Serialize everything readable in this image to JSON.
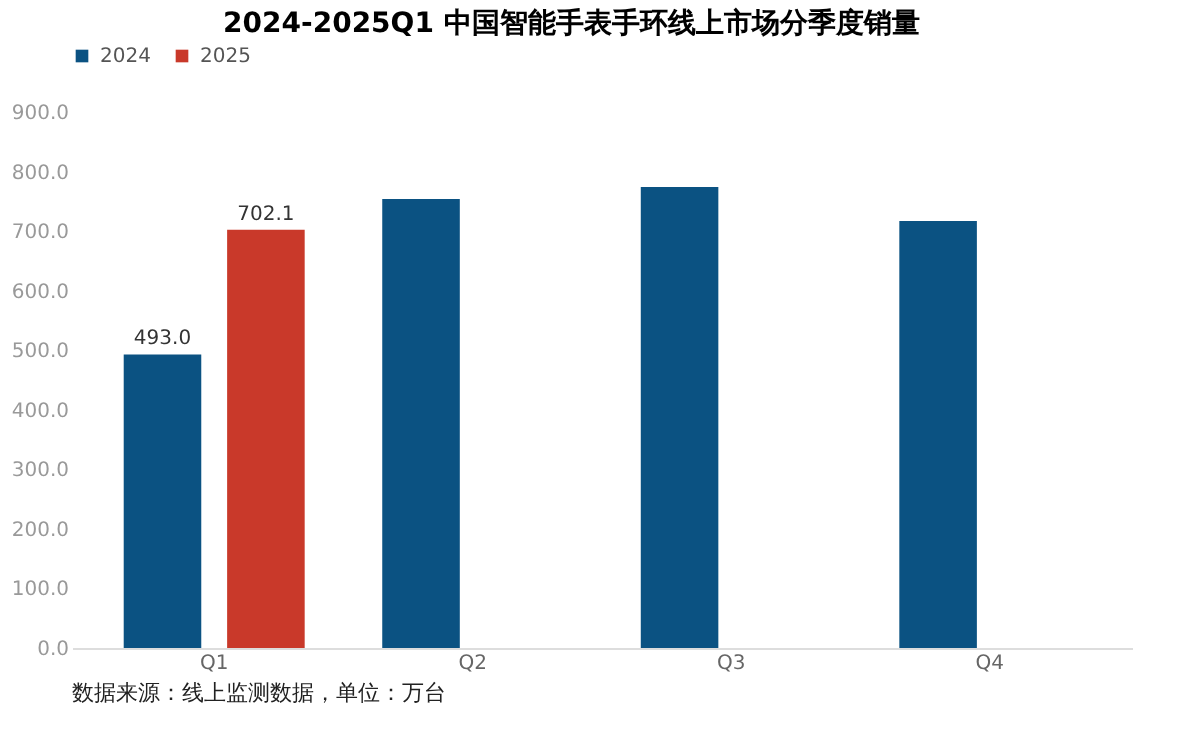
{
  "chart_data": {
    "type": "bar",
    "title": "2024-2025Q1 中国智能手表手环线上市场分季度销量",
    "categories": [
      "Q1",
      "Q2",
      "Q3",
      "Q4"
    ],
    "series": [
      {
        "name": "2024",
        "color": "#0b5282",
        "values": [
          493.0,
          754,
          774,
          717
        ],
        "value_labels": [
          "493.0",
          null,
          null,
          null
        ]
      },
      {
        "name": "2025",
        "color": "#c9392a",
        "values": [
          702.1,
          null,
          null,
          null
        ],
        "value_labels": [
          "702.1",
          null,
          null,
          null
        ]
      }
    ],
    "ylim": [
      0,
      900
    ],
    "yticks": [
      {
        "value": 0,
        "label": "0.0"
      },
      {
        "value": 100,
        "label": "100.0"
      },
      {
        "value": 200,
        "label": "200.0"
      },
      {
        "value": 300,
        "label": "300.0"
      },
      {
        "value": 400,
        "label": "400.0"
      },
      {
        "value": 500,
        "label": "500.0"
      },
      {
        "value": 600,
        "label": "600.0"
      },
      {
        "value": 700,
        "label": "700.0"
      },
      {
        "value": 800,
        "label": "800.0"
      },
      {
        "value": 900,
        "label": "900.0"
      }
    ],
    "grid": false,
    "legend": "top",
    "annotations": [
      "数据来源：线上监测数据，单位：万台"
    ]
  }
}
